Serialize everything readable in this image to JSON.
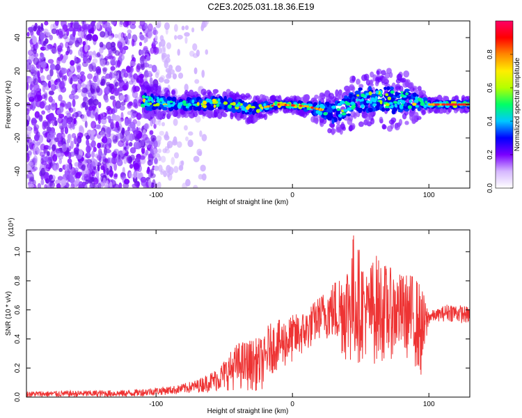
{
  "title": "C2E3.2025.031.18.36.E19",
  "chart_data": [
    {
      "type": "heatmap",
      "xlabel": "Height of straight line (km)",
      "ylabel": "Frequency (Hz)",
      "xlim": [
        -195,
        130
      ],
      "ylim": [
        -50,
        50
      ],
      "xticks": [
        -100,
        0,
        100
      ],
      "yticks": [
        -40,
        -20,
        0,
        20,
        40
      ],
      "colorbar": {
        "label": "Normalized spectral amplitude",
        "range": [
          0,
          1
        ],
        "ticks": [
          0.0,
          0.2,
          0.4,
          0.6,
          0.8
        ],
        "tick_labels": [
          "0.0",
          "0.2",
          "0.4",
          "0.6",
          "0.8"
        ],
        "colors": [
          "#ffffff",
          "#d6b8ff",
          "#7a00ff",
          "#0000ff",
          "#00c8ff",
          "#00ff66",
          "#b4ff00",
          "#ffee00",
          "#ff8800",
          "#ff0000",
          "#ff0066"
        ]
      },
      "noise_extent": [
        -195,
        -62
      ],
      "signal_band": [
        {
          "x": -110,
          "center": 2,
          "halfwidth": 8
        },
        {
          "x": -80,
          "center": 0,
          "halfwidth": 5
        },
        {
          "x": -50,
          "center": 1,
          "halfwidth": 6
        },
        {
          "x": -30,
          "center": -3,
          "halfwidth": 6
        },
        {
          "x": -10,
          "center": 0,
          "halfwidth": 3
        },
        {
          "x": 10,
          "center": -1,
          "halfwidth": 4
        },
        {
          "x": 30,
          "center": -5,
          "halfwidth": 10
        },
        {
          "x": 50,
          "center": 3,
          "halfwidth": 12
        },
        {
          "x": 80,
          "center": 3,
          "halfwidth": 14
        },
        {
          "x": 100,
          "center": 0,
          "halfwidth": 3
        },
        {
          "x": 130,
          "center": 0,
          "halfwidth": 3
        }
      ]
    },
    {
      "type": "line",
      "xlabel": "Height of straight line (km)",
      "ylabel": "SNR (10 * v/v)",
      "y_multiplier": "(x10⁴)",
      "xlim": [
        -195,
        130
      ],
      "ylim": [
        0,
        1.15
      ],
      "xticks": [
        -100,
        0,
        100
      ],
      "yticks": [
        0.0,
        0.2,
        0.4,
        0.6,
        0.8,
        1.0
      ],
      "ytick_labels": [
        "0.0",
        "0.2",
        "0.4",
        "0.6",
        "0.8",
        "1.0"
      ],
      "series": [
        {
          "color": "#ee3333",
          "envelope": {
            "x": [
              -195,
              -120,
              -85,
              -70,
              -55,
              -40,
              -30,
              -20,
              -18,
              -5,
              10,
              20,
              30,
              40,
              45,
              55,
              60,
              70,
              80,
              90,
              95,
              100,
              105,
              115,
              130
            ],
            "low": [
              0.0,
              0.0,
              0.02,
              0.03,
              0.04,
              0.05,
              0.04,
              0.05,
              0.15,
              0.2,
              0.3,
              0.4,
              0.38,
              0.22,
              0.2,
              0.28,
              0.22,
              0.25,
              0.3,
              0.2,
              0.1,
              0.5,
              0.52,
              0.52,
              0.5
            ],
            "high": [
              0.04,
              0.05,
              0.08,
              0.12,
              0.2,
              0.38,
              0.4,
              0.42,
              0.5,
              0.55,
              0.6,
              0.7,
              0.8,
              0.95,
              1.15,
              0.85,
              1.0,
              0.9,
              0.85,
              0.85,
              0.75,
              0.6,
              0.6,
              0.65,
              0.62
            ]
          }
        }
      ]
    }
  ]
}
